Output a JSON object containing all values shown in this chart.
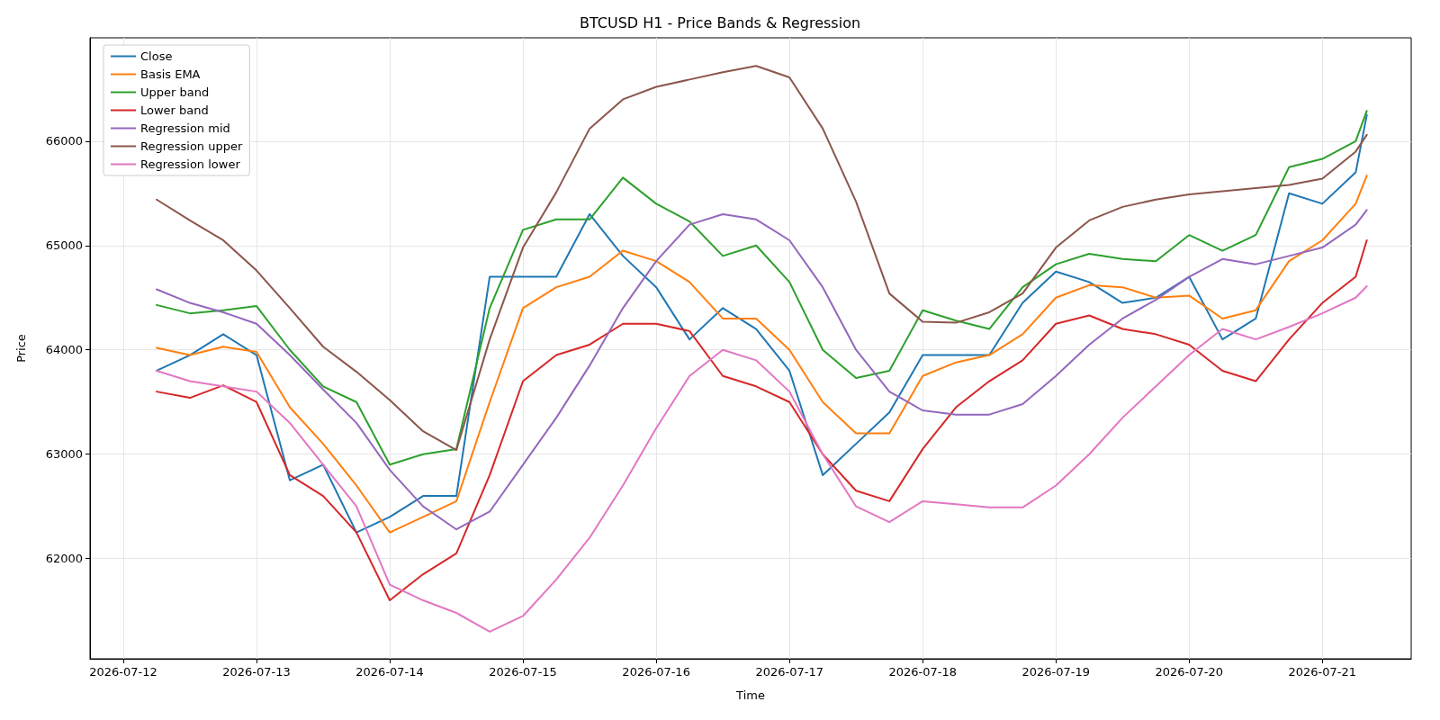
{
  "chart_data": {
    "type": "line",
    "title": "BTCUSD H1 - Price Bands & Regression",
    "xlabel": "Time",
    "ylabel": "Price",
    "x": [
      "2026-07-12T06:00",
      "2026-07-12T12:00",
      "2026-07-12T18:00",
      "2026-07-13T00:00",
      "2026-07-13T06:00",
      "2026-07-13T12:00",
      "2026-07-13T18:00",
      "2026-07-14T00:00",
      "2026-07-14T06:00",
      "2026-07-14T12:00",
      "2026-07-14T18:00",
      "2026-07-15T00:00",
      "2026-07-15T06:00",
      "2026-07-15T12:00",
      "2026-07-15T18:00",
      "2026-07-16T00:00",
      "2026-07-16T06:00",
      "2026-07-16T12:00",
      "2026-07-16T18:00",
      "2026-07-17T00:00",
      "2026-07-17T06:00",
      "2026-07-17T12:00",
      "2026-07-17T18:00",
      "2026-07-18T00:00",
      "2026-07-18T06:00",
      "2026-07-18T12:00",
      "2026-07-18T18:00",
      "2026-07-19T00:00",
      "2026-07-19T06:00",
      "2026-07-19T12:00",
      "2026-07-19T18:00",
      "2026-07-20T00:00",
      "2026-07-20T06:00",
      "2026-07-20T12:00",
      "2026-07-20T18:00",
      "2026-07-21T00:00",
      "2026-07-21T06:00",
      "2026-07-21T08:00"
    ],
    "series": [
      {
        "name": "Close",
        "color": "#1f77b4",
        "values": [
          63800,
          63950,
          64150,
          63950,
          62750,
          62900,
          62250,
          62400,
          62600,
          62600,
          64700,
          64700,
          64700,
          65300,
          64900,
          64600,
          64100,
          64400,
          64200,
          63800,
          62800,
          63100,
          63400,
          63950,
          63950,
          63950,
          64450,
          64750,
          64650,
          64450,
          64500,
          64700,
          64100,
          64300,
          65500,
          65400,
          65700,
          66250
        ]
      },
      {
        "name": "Basis EMA",
        "color": "#ff7f0e",
        "values": [
          64020,
          63950,
          64030,
          63980,
          63450,
          63100,
          62700,
          62250,
          62400,
          62550,
          63500,
          64400,
          64600,
          64700,
          64950,
          64850,
          64650,
          64300,
          64300,
          64000,
          63500,
          63200,
          63200,
          63750,
          63880,
          63950,
          64150,
          64500,
          64620,
          64600,
          64500,
          64520,
          64300,
          64380,
          64850,
          65050,
          65400,
          65670
        ]
      },
      {
        "name": "Upper band",
        "color": "#2ca02c",
        "values": [
          64430,
          64350,
          64380,
          64420,
          64000,
          63650,
          63500,
          62900,
          63000,
          63050,
          64400,
          65150,
          65250,
          65250,
          65650,
          65400,
          65230,
          64900,
          65000,
          64650,
          64000,
          63730,
          63800,
          64380,
          64280,
          64200,
          64600,
          64820,
          64920,
          64870,
          64850,
          65100,
          64950,
          65100,
          65750,
          65830,
          66000,
          66290
        ]
      },
      {
        "name": "Lower band",
        "color": "#d62728",
        "values": [
          63600,
          63540,
          63660,
          63500,
          62800,
          62600,
          62250,
          61600,
          61850,
          62050,
          62800,
          63700,
          63950,
          64050,
          64250,
          64250,
          64180,
          63750,
          63650,
          63500,
          63000,
          62650,
          62550,
          63050,
          63450,
          63700,
          63900,
          64250,
          64330,
          64200,
          64150,
          64050,
          63800,
          63700,
          64100,
          64450,
          64700,
          65050
        ]
      },
      {
        "name": "Regression mid",
        "color": "#9467bd",
        "values": [
          64580,
          64450,
          64360,
          64250,
          63950,
          63620,
          63300,
          62850,
          62500,
          62280,
          62450,
          62900,
          63350,
          63850,
          64400,
          64850,
          65200,
          65300,
          65250,
          65050,
          64600,
          64000,
          63600,
          63420,
          63380,
          63380,
          63480,
          63750,
          64050,
          64300,
          64480,
          64700,
          64870,
          64820,
          64900,
          64980,
          65200,
          65340
        ]
      },
      {
        "name": "Regression upper",
        "color": "#8c564b",
        "values": [
          65440,
          65240,
          65050,
          64760,
          64400,
          64030,
          63790,
          63520,
          63220,
          63040,
          64100,
          64980,
          65510,
          66120,
          66400,
          66520,
          66590,
          66660,
          66720,
          66610,
          66120,
          65420,
          64540,
          64270,
          64260,
          64360,
          64540,
          64980,
          65240,
          65370,
          65440,
          65490,
          65520,
          65550,
          65580,
          65640,
          65900,
          66060
        ]
      },
      {
        "name": "Regression lower",
        "color": "#e377c2",
        "values": [
          63800,
          63700,
          63650,
          63600,
          63300,
          62900,
          62500,
          61750,
          61600,
          61480,
          61300,
          61450,
          61800,
          62200,
          62700,
          63250,
          63750,
          64000,
          63900,
          63600,
          63000,
          62500,
          62350,
          62550,
          62520,
          62490,
          62490,
          62700,
          63000,
          63350,
          63650,
          63950,
          64200,
          64100,
          64220,
          64350,
          64500,
          64610
        ]
      }
    ],
    "xlim": [
      "2026-07-11T18:00",
      "2026-07-21T16:00"
    ],
    "xticks": [
      "2026-07-12",
      "2026-07-13",
      "2026-07-14",
      "2026-07-15",
      "2026-07-16",
      "2026-07-17",
      "2026-07-18",
      "2026-07-19",
      "2026-07-20",
      "2026-07-21"
    ],
    "ylim": [
      61040,
      66990
    ],
    "yticks": [
      62000,
      63000,
      64000,
      65000,
      66000
    ],
    "grid": true,
    "legend": "top left",
    "marker": "none",
    "line_style": "solid"
  }
}
